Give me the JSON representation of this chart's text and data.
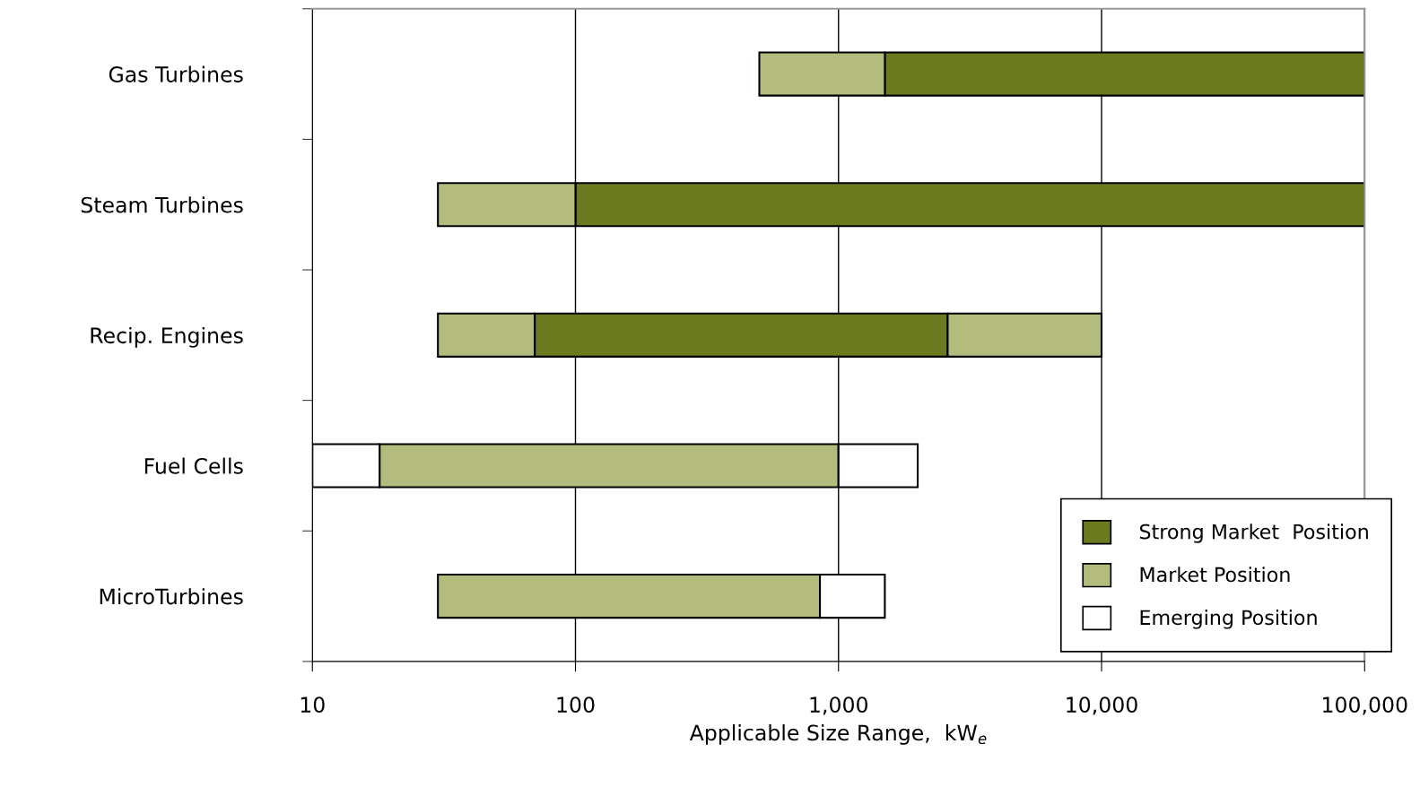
{
  "chart_data": {
    "type": "bar",
    "orientation": "horizontal",
    "categories": [
      "Gas Turbines",
      "Steam Turbines",
      "Recip. Engines",
      "Fuel Cells",
      "MicroTurbines"
    ],
    "xlabel": "Applicable Size Range,  kW$_{e}$",
    "log": "x",
    "xlim": [
      10,
      100000
    ],
    "xticks": [
      10,
      100,
      {
        "value": 1000,
        "label": "1,000"
      },
      {
        "value": 10000,
        "label": "10,000"
      },
      {
        "value": 100000,
        "label": "100,000"
      }
    ],
    "grid": "x",
    "legend": "bottom right",
    "series": [
      {
        "name": "Strong Market  Position",
        "color": "#6b7a1f",
        "base": [
          1500,
          100,
          70,
          null,
          null
        ],
        "values": [
          98500,
          99900,
          2530,
          null,
          null
        ]
      },
      {
        "name": "Market Position",
        "color": "#b3bc7c",
        "base": [
          500,
          30,
          30,
          18,
          30
        ],
        "values": [
          1000,
          70,
          40,
          982,
          820
        ]
      },
      {
        "color": "#b3bc7c",
        "base": [
          null,
          null,
          2600,
          null,
          null
        ],
        "values": [
          null,
          null,
          7400,
          null,
          null
        ]
      },
      {
        "name": "Emerging Position",
        "color": "#ffffff",
        "base": [
          null,
          null,
          null,
          10,
          850
        ],
        "values": [
          null,
          null,
          null,
          8,
          650
        ]
      },
      {
        "color": "#ffffff",
        "base": [
          null,
          null,
          null,
          1000,
          null
        ],
        "values": [
          null,
          null,
          null,
          1000,
          null
        ]
      }
    ]
  }
}
